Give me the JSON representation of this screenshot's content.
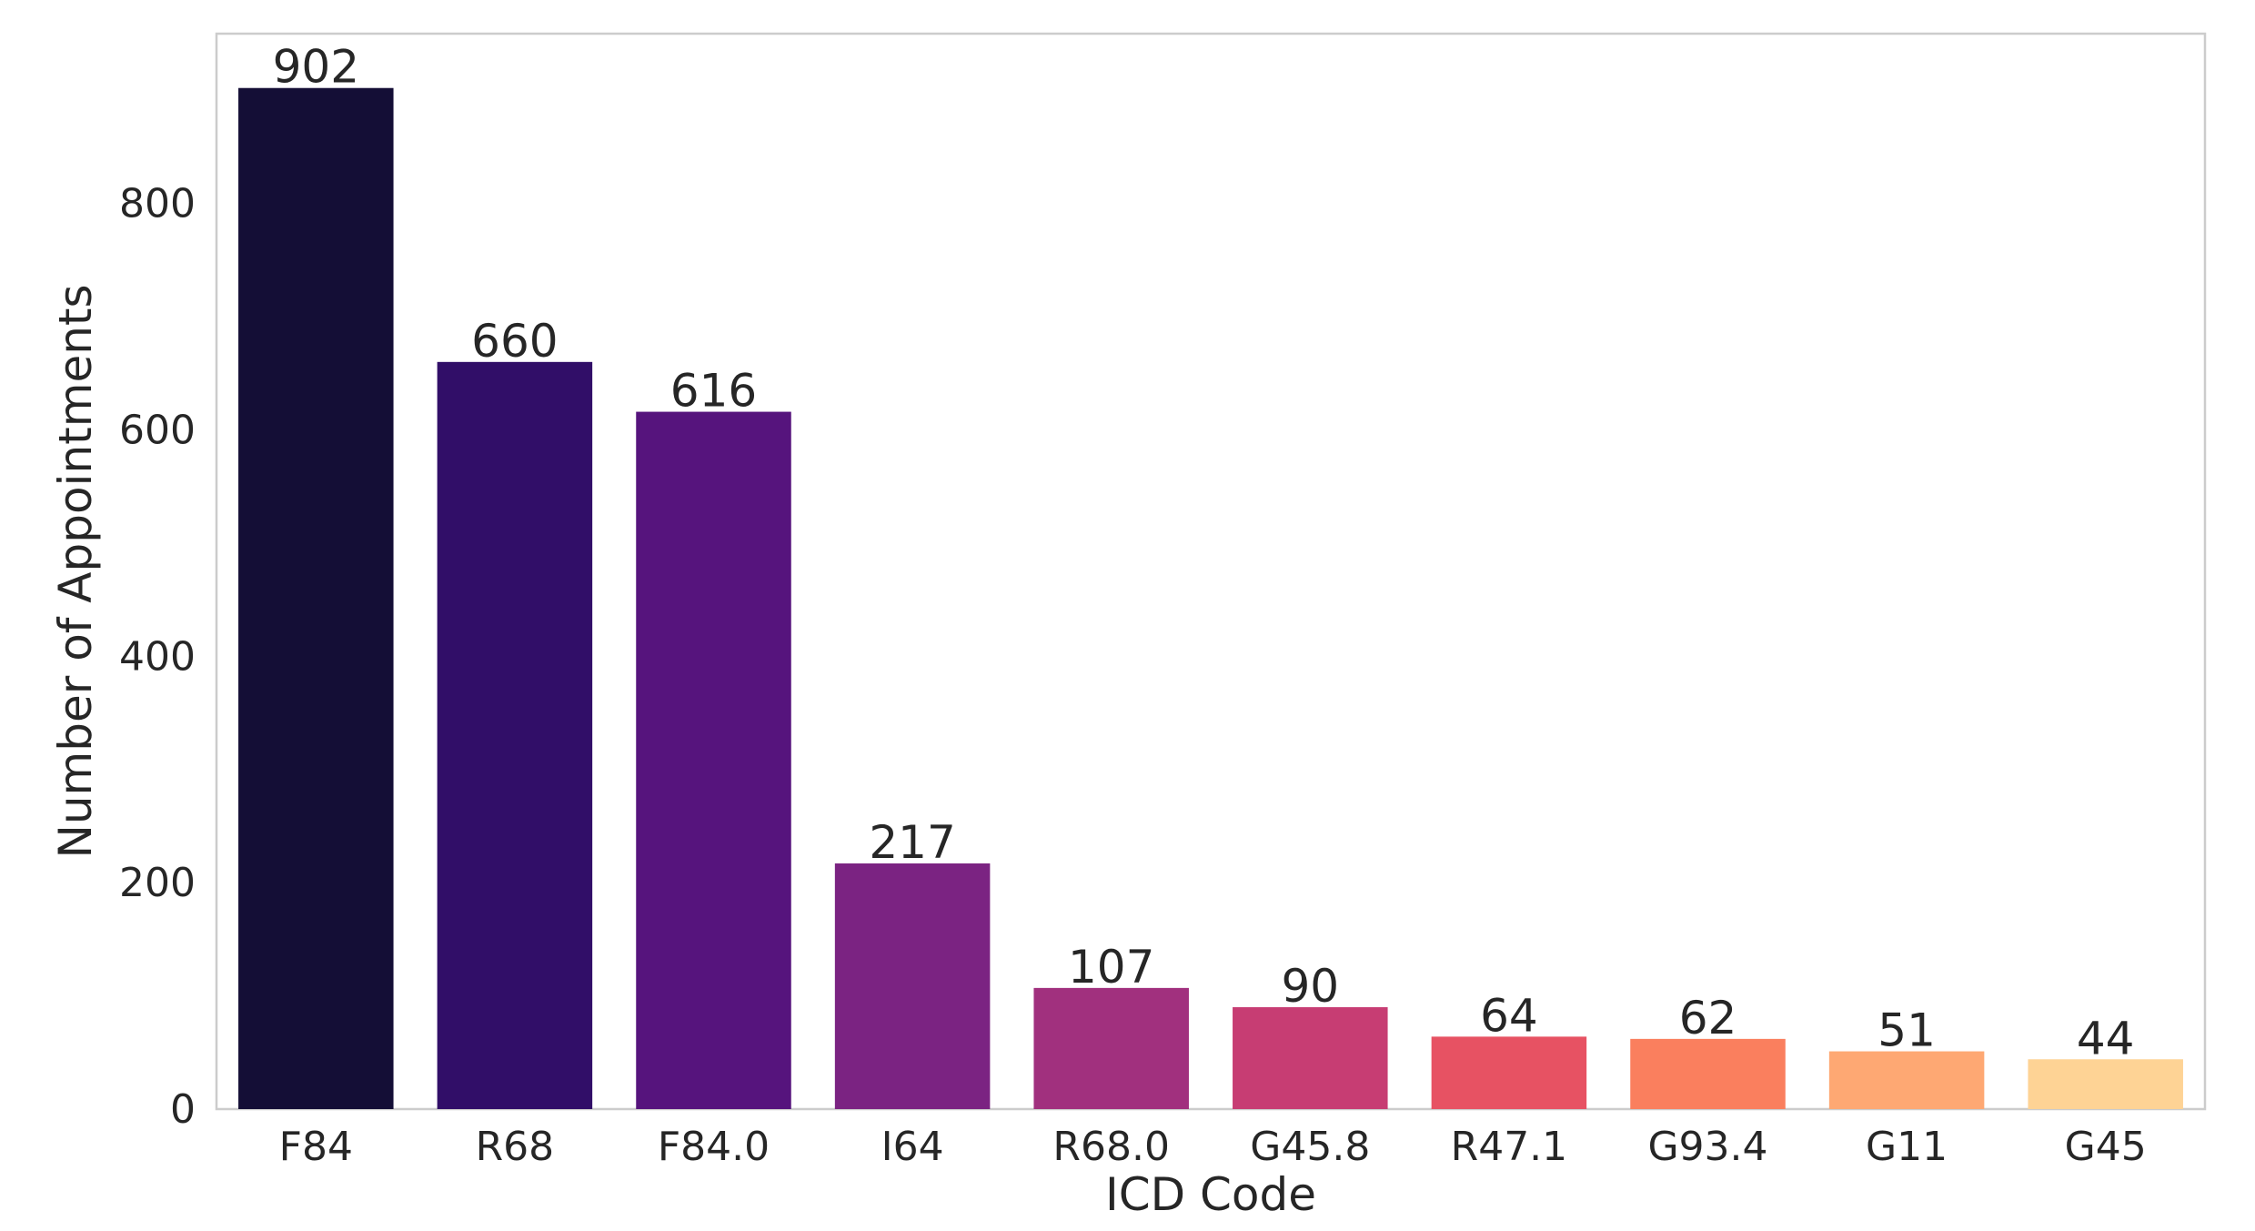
{
  "chart_data": {
    "type": "bar",
    "title": "",
    "xlabel": "ICD Code",
    "ylabel": "Number of Appointments",
    "categories": [
      "F84",
      "R68",
      "F84.0",
      "I64",
      "R68.0",
      "G45.8",
      "R47.1",
      "G93.4",
      "G11",
      "G45"
    ],
    "values": [
      902,
      660,
      616,
      217,
      107,
      90,
      64,
      62,
      51,
      44
    ],
    "data_labels": [
      "902",
      "660",
      "616",
      "217",
      "107",
      "90",
      "64",
      "62",
      "51",
      "44"
    ],
    "colors": [
      "#140e36",
      "#310e68",
      "#56147d",
      "#7b2382",
      "#a1307e",
      "#c73d73",
      "#e75263",
      "#fa7f5e",
      "#fea873",
      "#fed395"
    ],
    "ylim": [
      0,
      950
    ],
    "yticks": [
      0,
      200,
      400,
      600,
      800
    ],
    "ytick_labels": [
      "0",
      "200",
      "400",
      "600",
      "800"
    ],
    "grid": false,
    "legend": "none"
  }
}
